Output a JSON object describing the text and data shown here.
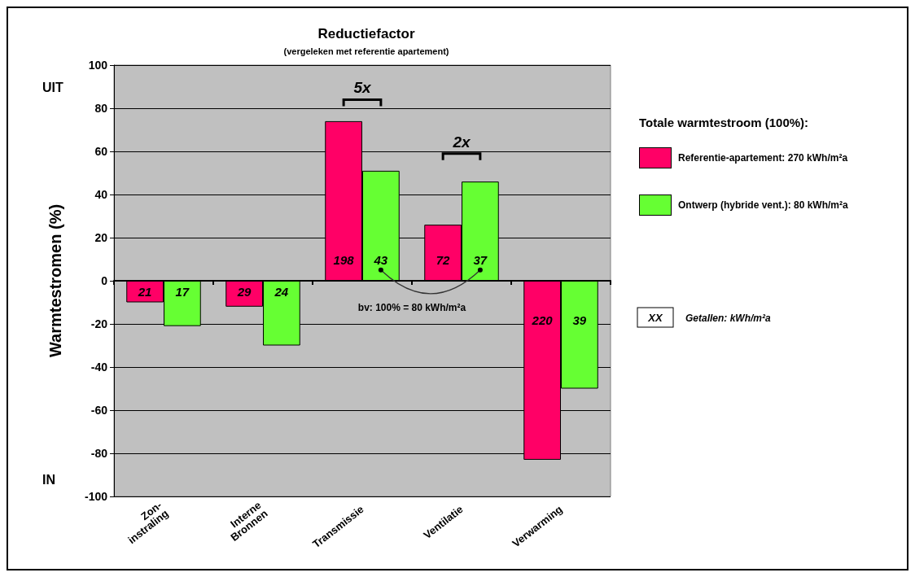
{
  "chart_data": {
    "type": "bar",
    "title": "Reductiefactor",
    "subtitle": "(vergeleken met referentie apartement)",
    "ylabel": "Warmtestromen (%)",
    "legend_title": "Totale warmtestroom (100%):",
    "categories": [
      "Zon-\ninstraling",
      "Interne\nBronnen",
      "Transmissie",
      "Ventilatie",
      "Verwarming"
    ],
    "series": [
      {
        "name": "Referentie-apartement: 270 kWh/m²a",
        "color": "#ff0066",
        "values": [
          -10,
          -12,
          74,
          26,
          -83
        ]
      },
      {
        "name": "Ontwerp (hybride vent.): 80 kWh/m²a",
        "color": "#66ff33",
        "values": [
          -21,
          -30,
          51,
          46,
          -50
        ]
      }
    ],
    "ylim": [
      -100,
      100
    ],
    "yticks": [
      -100,
      -80,
      -60,
      -40,
      -20,
      0,
      20,
      40,
      60,
      80,
      100
    ],
    "grid": "y",
    "legend": "right",
    "annotations": [
      "UIT",
      "IN",
      "5x",
      "2x",
      "bv: 100% = 80 kWh/m²a",
      "XX",
      "Getallen: kWh/m²a",
      {
        "text": "21",
        "x": "Zon-\ninstraling",
        "y": -5
      },
      {
        "text": "17",
        "x": "Zon-\ninstraling",
        "y": -5
      },
      {
        "text": "29",
        "x": "Interne\nBronnen",
        "y": -5
      },
      {
        "text": "24",
        "x": "Interne\nBronnen",
        "y": -5
      },
      {
        "text": "198",
        "x": "Transmissie",
        "y": 10
      },
      {
        "text": "43",
        "x": "Transmissie",
        "y": 10
      },
      {
        "text": "72",
        "x": "Ventilatie",
        "y": 10
      },
      {
        "text": "37",
        "x": "Ventilatie",
        "y": 10
      },
      {
        "text": "220",
        "x": "Verwarming",
        "y": -18
      },
      {
        "text": "39",
        "x": "Verwarming",
        "y": -18
      }
    ]
  }
}
